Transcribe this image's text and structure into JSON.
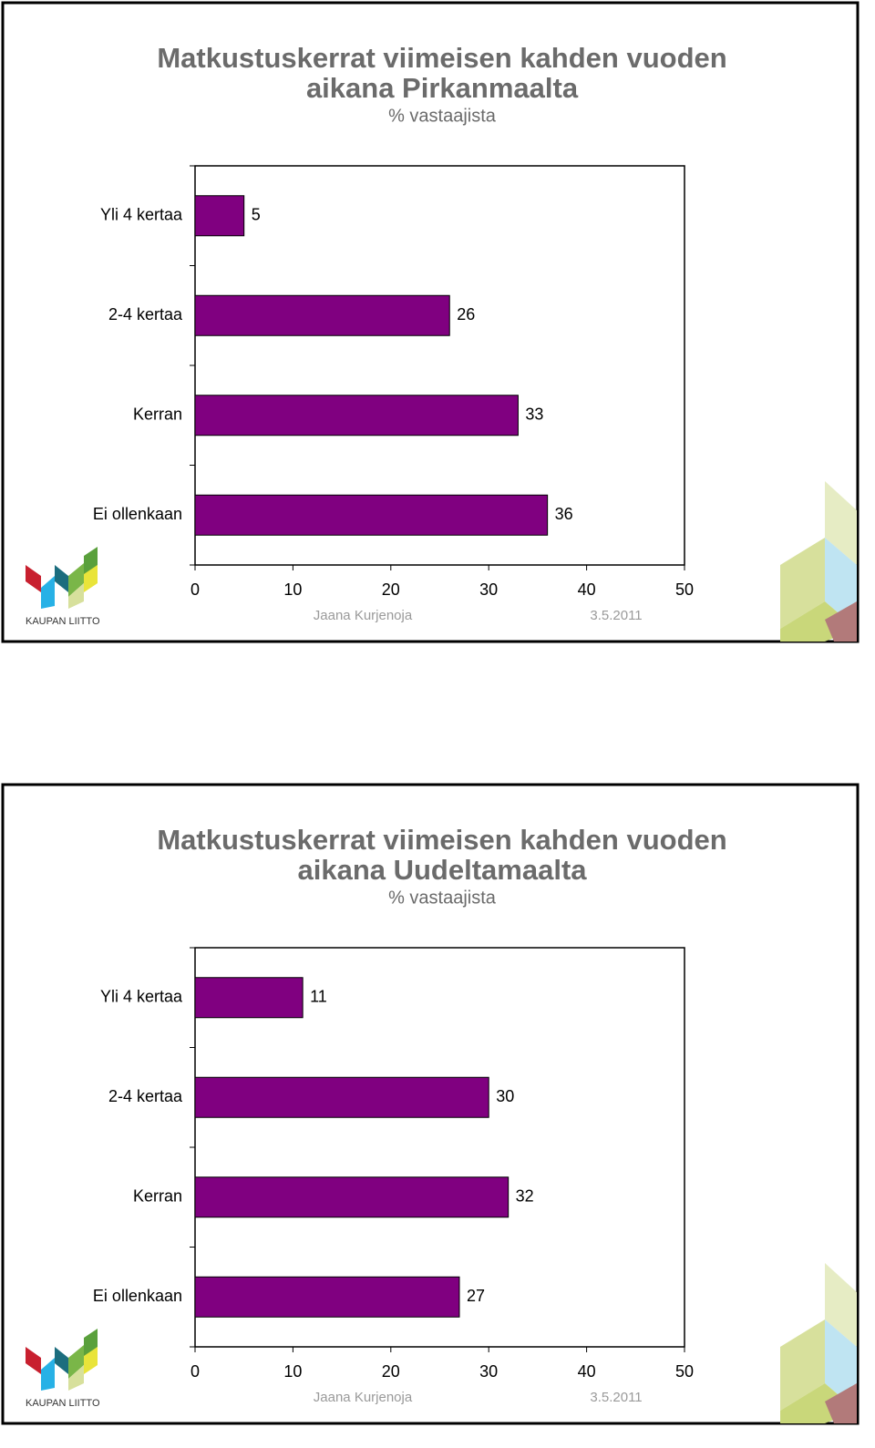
{
  "chart_data": [
    {
      "type": "bar",
      "orientation": "horizontal",
      "title": [
        "Matkustuskerrat viimeisen kahden vuoden",
        "aikana Pirkanmaalta"
      ],
      "subtitle": "% vastaajista",
      "categories": [
        "Yli 4 kertaa",
        "2-4 kertaa",
        "Kerran",
        "Ei ollenkaan"
      ],
      "values": [
        5,
        26,
        33,
        36
      ],
      "color": "#800080",
      "xlim": [
        0,
        50
      ],
      "xticks": [
        0,
        10,
        20,
        30,
        40,
        50
      ],
      "author": "Jaana Kurjenoja",
      "date": "3.5.2011",
      "logo_text": "KAUPAN LIITTO"
    },
    {
      "type": "bar",
      "orientation": "horizontal",
      "title": [
        "Matkustuskerrat viimeisen kahden vuoden",
        "aikana Uudeltamaalta"
      ],
      "subtitle": "% vastaajista",
      "categories": [
        "Yli 4 kertaa",
        "2-4 kertaa",
        "Kerran",
        "Ei ollenkaan"
      ],
      "values": [
        11,
        30,
        32,
        27
      ],
      "color": "#800080",
      "xlim": [
        0,
        50
      ],
      "xticks": [
        0,
        10,
        20,
        30,
        40,
        50
      ],
      "author": "Jaana Kurjenoja",
      "date": "3.5.2011",
      "logo_text": "KAUPAN LIITTO"
    }
  ]
}
